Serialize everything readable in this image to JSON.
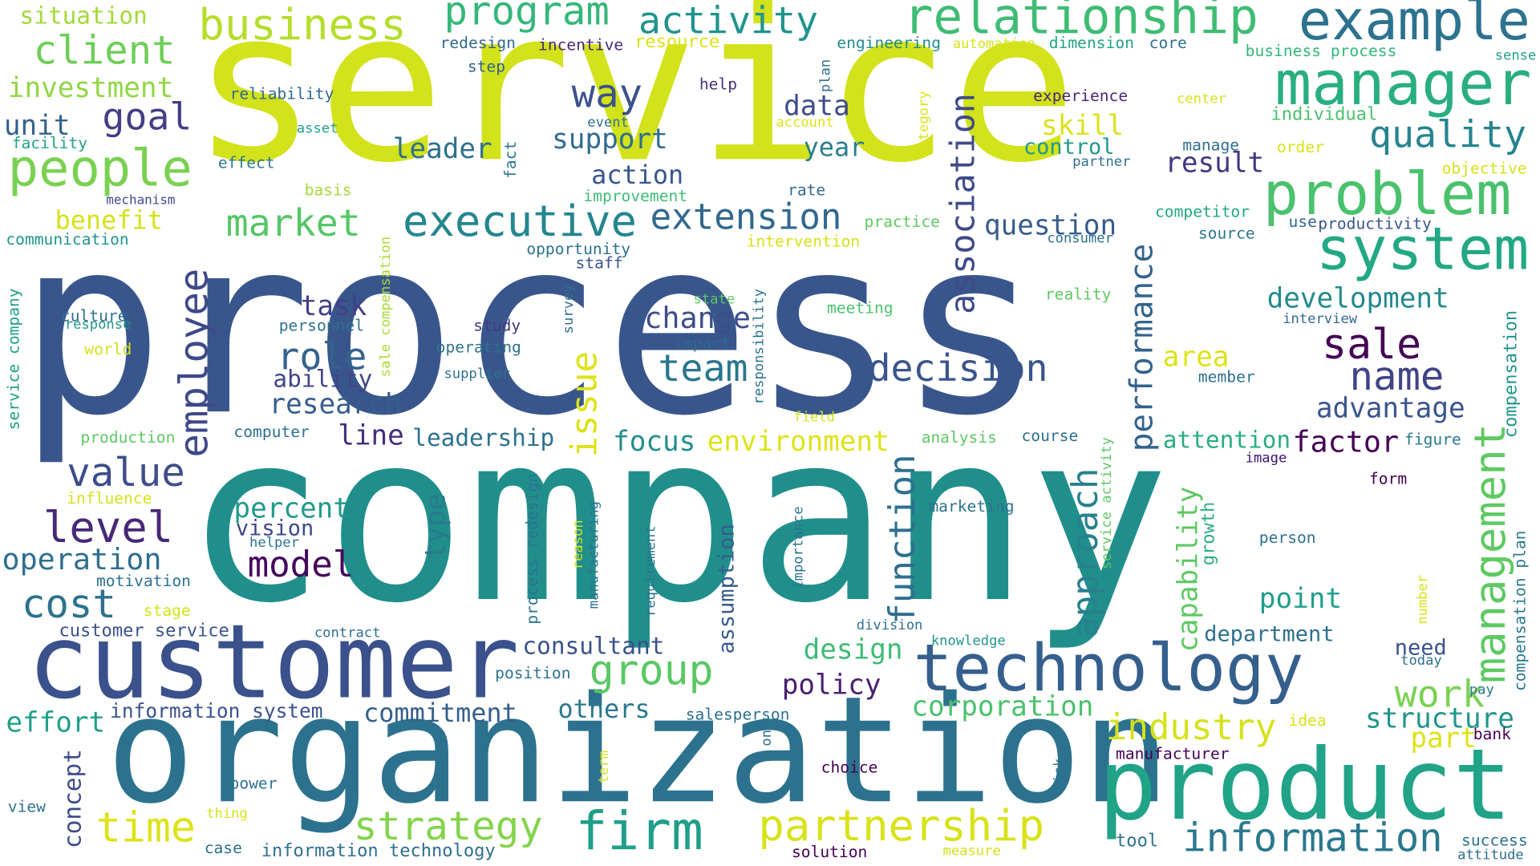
{
  "words": [
    {
      "text": "service",
      "color": "#d2e21b"
    },
    {
      "text": "process",
      "color": "#39568c"
    },
    {
      "text": "company",
      "color": "#208f8c"
    },
    {
      "text": "organization",
      "color": "#2c728e"
    },
    {
      "text": "customer",
      "color": "#3b518b"
    },
    {
      "text": "product",
      "color": "#20a386"
    },
    {
      "text": "technology",
      "color": "#355f8d"
    },
    {
      "text": "relationship",
      "color": "#3fbc73"
    },
    {
      "text": "manager",
      "color": "#29af7f"
    },
    {
      "text": "problem",
      "color": "#4ac16d"
    },
    {
      "text": "system",
      "color": "#22a884"
    },
    {
      "text": "example",
      "color": "#2c728e"
    },
    {
      "text": "business",
      "color": "#b5de2b"
    },
    {
      "text": "people",
      "color": "#7ad151"
    },
    {
      "text": "client",
      "color": "#6ece58"
    },
    {
      "text": "program",
      "color": "#35b779"
    },
    {
      "text": "activity",
      "color": "#1f948c"
    },
    {
      "text": "executive",
      "color": "#24868e"
    },
    {
      "text": "extension",
      "color": "#31688e"
    },
    {
      "text": "employee",
      "color": "#3e4989"
    },
    {
      "text": "association",
      "color": "#3e4a89"
    },
    {
      "text": "management",
      "color": "#5ec962"
    },
    {
      "text": "performance",
      "color": "#33638d"
    },
    {
      "text": "decision",
      "color": "#39558c"
    },
    {
      "text": "partnership",
      "color": "#d8e219"
    },
    {
      "text": "information",
      "color": "#2a788e"
    },
    {
      "text": "firm",
      "color": "#1f9e89"
    },
    {
      "text": "strategy",
      "color": "#84d44b"
    },
    {
      "text": "time",
      "color": "#dde318"
    },
    {
      "text": "sale",
      "color": "#440154"
    },
    {
      "text": "quality",
      "color": "#25848e"
    },
    {
      "text": "industry",
      "color": "#d5e21a"
    },
    {
      "text": "function",
      "color": "#2e6f8e"
    },
    {
      "text": "approach",
      "color": "#27808e"
    },
    {
      "text": "way",
      "color": "#3b528b"
    },
    {
      "text": "goal",
      "color": "#433e85"
    },
    {
      "text": "level",
      "color": "#482878"
    },
    {
      "text": "value",
      "color": "#3d4e8a"
    },
    {
      "text": "cost",
      "color": "#2d718e"
    },
    {
      "text": "model",
      "color": "#46085c"
    },
    {
      "text": "group",
      "color": "#5ac864"
    },
    {
      "text": "team",
      "color": "#2a768e"
    },
    {
      "text": "role",
      "color": "#33638d"
    },
    {
      "text": "market",
      "color": "#56c667"
    },
    {
      "text": "issue",
      "color": "#dde318"
    },
    {
      "text": "name",
      "color": "#414487"
    },
    {
      "text": "development",
      "color": "#238a8d"
    },
    {
      "text": "work",
      "color": "#7ad151"
    },
    {
      "text": "operation",
      "color": "#2e6e8e"
    },
    {
      "text": "situation",
      "color": "#a2da37"
    },
    {
      "text": "investment",
      "color": "#90d743"
    },
    {
      "text": "unit",
      "color": "#33628d"
    },
    {
      "text": "benefit",
      "color": "#d5e21a"
    },
    {
      "text": "skill",
      "color": "#dae319"
    },
    {
      "text": "data",
      "color": "#3e4c8a"
    },
    {
      "text": "year",
      "color": "#287d8e"
    },
    {
      "text": "support",
      "color": "#2f6c8e"
    },
    {
      "text": "leader",
      "color": "#2d708e"
    },
    {
      "text": "action",
      "color": "#39568c"
    },
    {
      "text": "change",
      "color": "#3d4d8a"
    },
    {
      "text": "task",
      "color": "#424086"
    },
    {
      "text": "ability",
      "color": "#404588"
    },
    {
      "text": "research",
      "color": "#365d8d"
    },
    {
      "text": "line",
      "color": "#472c7a"
    },
    {
      "text": "leadership",
      "color": "#2d718e"
    },
    {
      "text": "focus",
      "color": "#228d8d"
    },
    {
      "text": "environment",
      "color": "#dde318"
    },
    {
      "text": "question",
      "color": "#375b8d"
    },
    {
      "text": "result",
      "color": "#453581"
    },
    {
      "text": "control",
      "color": "#1f9a8a"
    },
    {
      "text": "advantage",
      "color": "#3a548c"
    },
    {
      "text": "factor",
      "color": "#440154"
    },
    {
      "text": "area",
      "color": "#dde318"
    },
    {
      "text": "attention",
      "color": "#27ad81"
    },
    {
      "text": "percent",
      "color": "#1f9a8a"
    },
    {
      "text": "vision",
      "color": "#3f4889"
    },
    {
      "text": "type",
      "color": "#2a788e"
    },
    {
      "text": "capability",
      "color": "#5ec962"
    },
    {
      "text": "point",
      "color": "#1f9e89"
    },
    {
      "text": "department",
      "color": "#2d708e"
    },
    {
      "text": "consultant",
      "color": "#3b518b"
    },
    {
      "text": "design",
      "color": "#3dbc74"
    },
    {
      "text": "policy",
      "color": "#481f70"
    },
    {
      "text": "corporation",
      "color": "#4ac16d"
    },
    {
      "text": "others",
      "color": "#2a788e"
    },
    {
      "text": "commitment",
      "color": "#355f8d"
    },
    {
      "text": "effort",
      "color": "#1fa088"
    },
    {
      "text": "structure",
      "color": "#1f958b"
    },
    {
      "text": "part",
      "color": "#dde318"
    },
    {
      "text": "need",
      "color": "#3b528b"
    },
    {
      "text": "concept",
      "color": "#3e4a89"
    },
    {
      "text": "assumption",
      "color": "#365c8d"
    },
    {
      "text": "growth",
      "color": "#29af7f"
    },
    {
      "text": "compensation",
      "color": "#1f968b"
    },
    {
      "text": "service company",
      "color": "#1f9e89"
    },
    {
      "text": "process redesign",
      "color": "#2c728e"
    },
    {
      "text": "information system",
      "color": "#3b528b"
    },
    {
      "text": "information technology",
      "color": "#2e6f8e"
    },
    {
      "text": "compensation plan",
      "color": "#2a788e"
    },
    {
      "text": "sale compensation",
      "color": "#a8db34"
    },
    {
      "text": "customer service",
      "color": "#3b528b"
    },
    {
      "text": "business process",
      "color": "#35b779"
    },
    {
      "text": "service activity",
      "color": "#5ec962"
    },
    {
      "text": "redesign",
      "color": "#31688e"
    },
    {
      "text": "incentive",
      "color": "#472878"
    },
    {
      "text": "resource",
      "color": "#dde318"
    },
    {
      "text": "engineering",
      "color": "#238a8d"
    },
    {
      "text": "automation",
      "color": "#d5e21a"
    },
    {
      "text": "dimension",
      "color": "#20a386"
    },
    {
      "text": "core",
      "color": "#2d708e"
    },
    {
      "text": "sense",
      "color": "#1fa188"
    },
    {
      "text": "step",
      "color": "#33638d"
    },
    {
      "text": "plan",
      "color": "#2d708e"
    },
    {
      "text": "help",
      "color": "#46337e"
    },
    {
      "text": "reliability",
      "color": "#31688e"
    },
    {
      "text": "asset",
      "color": "#1fa188"
    },
    {
      "text": "facility",
      "color": "#20a386"
    },
    {
      "text": "effect",
      "color": "#2a788e"
    },
    {
      "text": "mechanism",
      "color": "#3e4989"
    },
    {
      "text": "basis",
      "color": "#a2da37"
    },
    {
      "text": "communication",
      "color": "#1f968b"
    },
    {
      "text": "event",
      "color": "#2d708e"
    },
    {
      "text": "improvement",
      "color": "#3dbc74"
    },
    {
      "text": "fact",
      "color": "#2a788e"
    },
    {
      "text": "account",
      "color": "#dde318"
    },
    {
      "text": "category",
      "color": "#dde318"
    },
    {
      "text": "rate",
      "color": "#31688e"
    },
    {
      "text": "practice",
      "color": "#5ec962"
    },
    {
      "text": "intervention",
      "color": "#d5e21a"
    },
    {
      "text": "opportunity",
      "color": "#2c728e"
    },
    {
      "text": "staff",
      "color": "#3b528b"
    },
    {
      "text": "experience",
      "color": "#482878"
    },
    {
      "text": "center",
      "color": "#d5e21a"
    },
    {
      "text": "individual",
      "color": "#4ac16d"
    },
    {
      "text": "order",
      "color": "#d5e21a"
    },
    {
      "text": "manage",
      "color": "#2d708e"
    },
    {
      "text": "partner",
      "color": "#2d708e"
    },
    {
      "text": "objective",
      "color": "#d5e21a"
    },
    {
      "text": "competitor",
      "color": "#22a884"
    },
    {
      "text": "source",
      "color": "#2a788e"
    },
    {
      "text": "consumer",
      "color": "#2d708e"
    },
    {
      "text": "use",
      "color": "#31688e"
    },
    {
      "text": "productivity",
      "color": "#39568c"
    },
    {
      "text": "reality",
      "color": "#5ec962"
    },
    {
      "text": "interview",
      "color": "#31688e"
    },
    {
      "text": "meeting",
      "color": "#4ac16d"
    },
    {
      "text": "state",
      "color": "#5ec962"
    },
    {
      "text": "impact",
      "color": "#31688e"
    },
    {
      "text": "responsibility",
      "color": "#2c728e"
    },
    {
      "text": "operating",
      "color": "#2c728e"
    },
    {
      "text": "supplier",
      "color": "#2c728e"
    },
    {
      "text": "survey",
      "color": "#2d708e"
    },
    {
      "text": "study",
      "color": "#453781"
    },
    {
      "text": "personnel",
      "color": "#2d708e"
    },
    {
      "text": "culture",
      "color": "#2d708e"
    },
    {
      "text": "response",
      "color": "#1f968b"
    },
    {
      "text": "world",
      "color": "#d5e21a"
    },
    {
      "text": "production",
      "color": "#5ec962"
    },
    {
      "text": "computer",
      "color": "#2d708e"
    },
    {
      "text": "influence",
      "color": "#d5e21a"
    },
    {
      "text": "field",
      "color": "#d5e21a"
    },
    {
      "text": "analysis",
      "color": "#5ec962"
    },
    {
      "text": "course",
      "color": "#2d708e"
    },
    {
      "text": "member",
      "color": "#2d708e"
    },
    {
      "text": "image",
      "color": "#3b0f70"
    },
    {
      "text": "figure",
      "color": "#2a788e"
    },
    {
      "text": "form",
      "color": "#440154"
    },
    {
      "text": "marketing",
      "color": "#2c728e"
    },
    {
      "text": "person",
      "color": "#2d708e"
    },
    {
      "text": "helper",
      "color": "#2d708e"
    },
    {
      "text": "motivation",
      "color": "#2c728e"
    },
    {
      "text": "stage",
      "color": "#d5e21a"
    },
    {
      "text": "contract",
      "color": "#2d708e"
    },
    {
      "text": "importance",
      "color": "#2c728e"
    },
    {
      "text": "reason",
      "color": "#d5e21a"
    },
    {
      "text": "manufacturing",
      "color": "#2c728e"
    },
    {
      "text": "requirement",
      "color": "#2c728e"
    },
    {
      "text": "division",
      "color": "#2d708e"
    },
    {
      "text": "knowledge",
      "color": "#1f968b"
    },
    {
      "text": "number",
      "color": "#d5e21a"
    },
    {
      "text": "today",
      "color": "#2d708e"
    },
    {
      "text": "position",
      "color": "#2c728e"
    },
    {
      "text": "salesperson",
      "color": "#2d708e"
    },
    {
      "text": "one",
      "color": "#2d708e"
    },
    {
      "text": "pay",
      "color": "#2a788e"
    },
    {
      "text": "idea",
      "color": "#d5e21a"
    },
    {
      "text": "bank",
      "color": "#440154"
    },
    {
      "text": "manufacturer",
      "color": "#440154"
    },
    {
      "text": "choice",
      "color": "#440154"
    },
    {
      "text": "risk",
      "color": "#2c728e"
    },
    {
      "text": "term",
      "color": "#d5e21a"
    },
    {
      "text": "power",
      "color": "#2c728e"
    },
    {
      "text": "thing",
      "color": "#d5e21a"
    },
    {
      "text": "view",
      "color": "#2d708e"
    },
    {
      "text": "case",
      "color": "#2d708e"
    },
    {
      "text": "tool",
      "color": "#2d708e"
    },
    {
      "text": "solution",
      "color": "#440154"
    },
    {
      "text": "measure",
      "color": "#d5e21a"
    },
    {
      "text": "success",
      "color": "#2d708e"
    },
    {
      "text": "attitude",
      "color": "#2d708e"
    }
  ]
}
